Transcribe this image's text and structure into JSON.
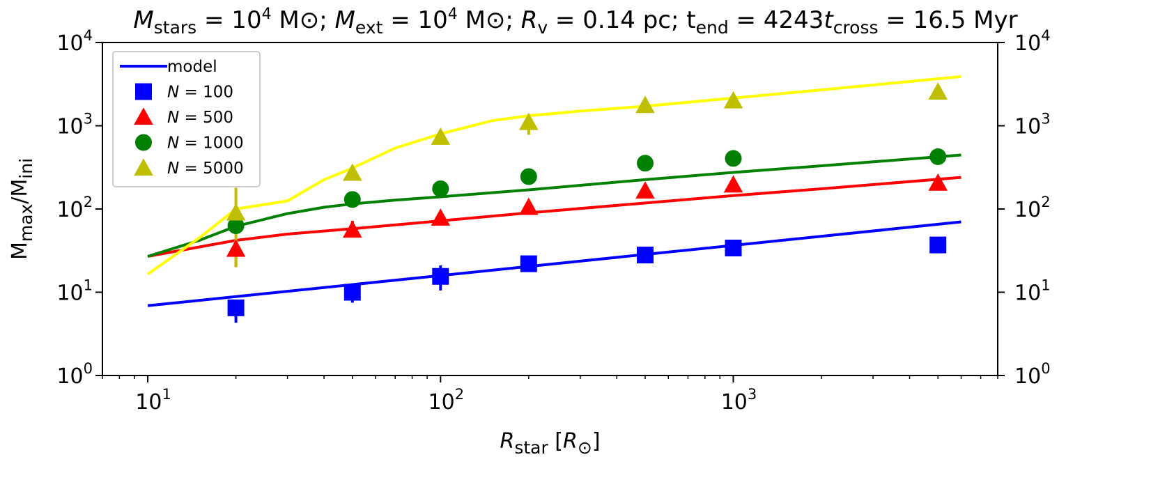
{
  "chart_data": {
    "type": "scatter",
    "title_parts": [
      "M",
      "stars",
      " = 10",
      "4",
      " M",
      "⊙",
      "; ",
      "M",
      "ext",
      " = 10",
      "4",
      " M",
      "⊙",
      "; ",
      "R",
      "v",
      " = 0.14 pc; t",
      "end",
      " = 4243",
      "t",
      "cross",
      " = 16.5 Myr"
    ],
    "xlabel_parts": [
      "R",
      "star",
      " [",
      "R",
      "⊙",
      "]"
    ],
    "ylabel_parts": [
      "M",
      "max",
      "/M",
      "ini"
    ],
    "xscale": "log",
    "yscale": "log",
    "xlim": [
      7,
      8000
    ],
    "ylim": [
      1,
      10000
    ],
    "x_ticks": [
      {
        "value": 10,
        "base": "10",
        "exp": "1"
      },
      {
        "value": 100,
        "base": "10",
        "exp": "2"
      },
      {
        "value": 1000,
        "base": "10",
        "exp": "3"
      }
    ],
    "y_ticks": [
      {
        "value": 1,
        "base": "10",
        "exp": "0"
      },
      {
        "value": 10,
        "base": "10",
        "exp": "1"
      },
      {
        "value": 100,
        "base": "10",
        "exp": "2"
      },
      {
        "value": 1000,
        "base": "10",
        "exp": "3"
      },
      {
        "value": 10000,
        "base": "10",
        "exp": "4"
      }
    ],
    "legend": {
      "position": "upper-left",
      "entries": [
        {
          "label": "model",
          "marker": "line",
          "color": "#0000ff"
        },
        {
          "label_prefix": "N",
          "label": " = 100",
          "marker": "square",
          "color": "#0000ff"
        },
        {
          "label_prefix": "N",
          "label": " = 500",
          "marker": "triangle",
          "color": "#ff0000"
        },
        {
          "label_prefix": "N",
          "label": " = 1000",
          "marker": "circle",
          "color": "#008000"
        },
        {
          "label_prefix": "N",
          "label": " = 5000",
          "marker": "triangle",
          "color": "#bfbf00"
        }
      ]
    },
    "model_lines": [
      {
        "name": "model N=100",
        "color": "#0000ff",
        "x": [
          10,
          6000
        ],
        "y": [
          6.9,
          70
        ]
      },
      {
        "name": "model N=500",
        "color": "#ff0000",
        "x": [
          10,
          15,
          20,
          30,
          50,
          100,
          200,
          500,
          1000,
          2000,
          6000
        ],
        "y": [
          27,
          35,
          42,
          50,
          58,
          72,
          90,
          118,
          145,
          175,
          240
        ]
      },
      {
        "name": "model N=1000",
        "color": "#008000",
        "x": [
          10,
          15,
          20,
          30,
          40,
          50,
          70,
          100,
          200,
          500,
          1000,
          2000,
          6000
        ],
        "y": [
          27,
          42,
          62,
          88,
          105,
          115,
          128,
          140,
          170,
          225,
          275,
          330,
          445
        ]
      },
      {
        "name": "model N=5000",
        "color": "#ffff00",
        "x": [
          10,
          15,
          20,
          30,
          40,
          50,
          70,
          100,
          150,
          200,
          300,
          500,
          1000,
          2000,
          6000
        ],
        "y": [
          16.5,
          45,
          100,
          125,
          225,
          310,
          540,
          800,
          1150,
          1320,
          1500,
          1720,
          2150,
          2700,
          3900
        ]
      }
    ],
    "series": [
      {
        "name": "N = 100",
        "marker": "square",
        "color": "#0000ff",
        "x": [
          20,
          50,
          100,
          200,
          500,
          1000,
          5000
        ],
        "y": [
          6.5,
          10,
          15.5,
          22,
          28,
          34,
          37
        ],
        "yerr_low": [
          4.3,
          7.5,
          10.5,
          20,
          26,
          32,
          35
        ],
        "yerr_high": [
          8,
          11.5,
          21,
          24,
          30,
          36,
          39
        ]
      },
      {
        "name": "N = 500",
        "marker": "triangle",
        "color": "#ff0000",
        "x": [
          20,
          50,
          100,
          200,
          500,
          1000,
          5000
        ],
        "y": [
          33,
          56,
          78,
          105,
          165,
          195,
          205
        ],
        "yerr_low": [
          20,
          48,
          72,
          98,
          155,
          185,
          195
        ],
        "yerr_high": [
          42,
          72,
          85,
          112,
          175,
          205,
          215
        ]
      },
      {
        "name": "N = 1000",
        "marker": "circle",
        "color": "#008000",
        "x": [
          20,
          50,
          100,
          200,
          500,
          1000,
          5000
        ],
        "y": [
          63,
          130,
          175,
          245,
          355,
          405,
          425
        ],
        "yerr_low": [
          60,
          125,
          170,
          240,
          350,
          400,
          420
        ],
        "yerr_high": [
          66,
          135,
          180,
          250,
          360,
          410,
          430
        ]
      },
      {
        "name": "N = 5000",
        "marker": "triangle",
        "color": "#bfbf00",
        "x": [
          20,
          50,
          100,
          200,
          500,
          1000,
          5000
        ],
        "y": [
          90,
          270,
          730,
          1100,
          1760,
          2000,
          2550
        ],
        "yerr_low": [
          20,
          255,
          700,
          780,
          1720,
          1960,
          2500
        ],
        "yerr_high": [
          180,
          290,
          760,
          1250,
          1800,
          2050,
          2600
        ]
      }
    ]
  }
}
